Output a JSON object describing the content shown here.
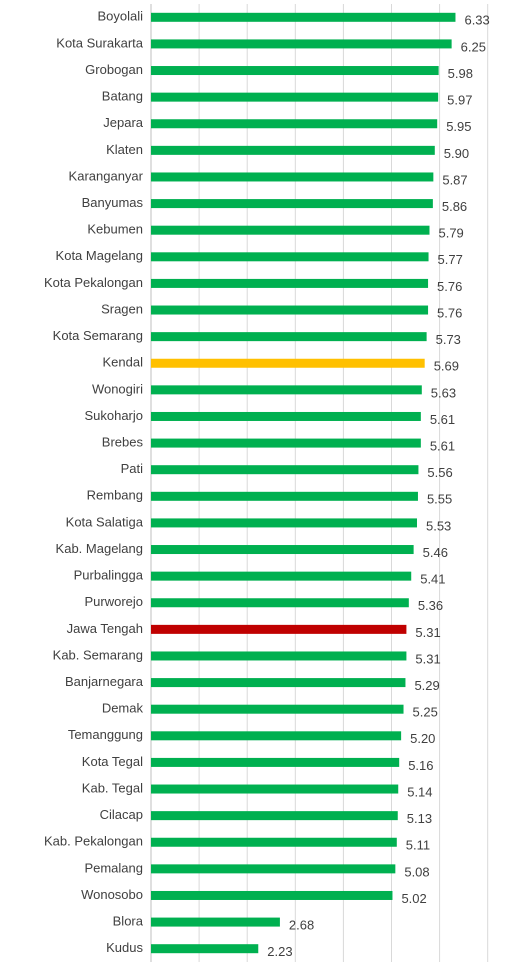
{
  "chart_data": {
    "type": "barh",
    "categories": [
      "Boyolali",
      "Kota Surakarta",
      "Grobogan",
      "Batang",
      "Jepara",
      "Klaten",
      "Karanganyar",
      "Banyumas",
      "Kebumen",
      "Kota Magelang",
      "Kota Pekalongan",
      "Sragen",
      "Kota Semarang",
      "Kendal",
      "Wonogiri",
      "Sukoharjo",
      "Brebes",
      "Pati",
      "Rembang",
      "Kota Salatiga",
      "Kab. Magelang",
      "Purbalingga",
      "Purworejo",
      "Jawa Tengah",
      "Kab. Semarang",
      "Banjarnegara",
      "Demak",
      "Temanggung",
      "Kota Tegal",
      "Kab. Tegal",
      "Cilacap",
      "Kab. Pekalongan",
      "Pemalang",
      "Wonosobo",
      "Blora",
      "Kudus"
    ],
    "values": [
      6.33,
      6.25,
      5.98,
      5.97,
      5.95,
      5.9,
      5.87,
      5.86,
      5.79,
      5.77,
      5.76,
      5.76,
      5.73,
      5.69,
      5.63,
      5.61,
      5.61,
      5.56,
      5.55,
      5.53,
      5.46,
      5.41,
      5.36,
      5.31,
      5.31,
      5.29,
      5.25,
      5.2,
      5.16,
      5.14,
      5.13,
      5.11,
      5.08,
      5.02,
      2.68,
      2.23
    ],
    "value_labels": [
      "6.33",
      "6.25",
      "5.98",
      "5.97",
      "5.95",
      "5.90",
      "5.87",
      "5.86",
      "5.79",
      "5.77",
      "5.76",
      "5.76",
      "5.73",
      "5.69",
      "5.63",
      "5.61",
      "5.61",
      "5.56",
      "5.55",
      "5.53",
      "5.46",
      "5.41",
      "5.36",
      "5.31",
      "5.31",
      "5.29",
      "5.25",
      "5.20",
      "5.16",
      "5.14",
      "5.13",
      "5.11",
      "5.08",
      "5.02",
      "2.68",
      "2.23"
    ],
    "colors": [
      "#00b050",
      "#00b050",
      "#00b050",
      "#00b050",
      "#00b050",
      "#00b050",
      "#00b050",
      "#00b050",
      "#00b050",
      "#00b050",
      "#00b050",
      "#00b050",
      "#00b050",
      "#ffc000",
      "#00b050",
      "#00b050",
      "#00b050",
      "#00b050",
      "#00b050",
      "#00b050",
      "#00b050",
      "#00b050",
      "#00b050",
      "#c00000",
      "#00b050",
      "#00b050",
      "#00b050",
      "#00b050",
      "#00b050",
      "#00b050",
      "#00b050",
      "#00b050",
      "#00b050",
      "#00b050",
      "#00b050",
      "#00b050"
    ],
    "xlim": [
      0,
      7
    ],
    "xticks": [
      0,
      1,
      2,
      3,
      4,
      5,
      6,
      7
    ],
    "grid": true
  }
}
